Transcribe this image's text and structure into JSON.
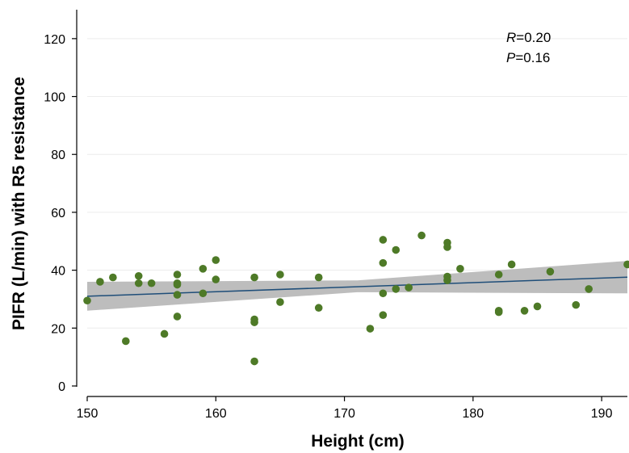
{
  "chart_data": {
    "type": "scatter",
    "xlabel": "Height (cm)",
    "ylabel": "PIFR (L/min) with R5 resistance",
    "xlim": [
      150,
      192
    ],
    "ylim": [
      0,
      130
    ],
    "xticks": [
      150,
      160,
      170,
      180,
      190
    ],
    "yticks": [
      0,
      20,
      40,
      60,
      80,
      100,
      120
    ],
    "grid": "horizontal",
    "annotation": {
      "r_label": "R",
      "r_value": "=0.20",
      "p_label": "P",
      "p_value": "=0.16"
    },
    "colors": {
      "points": "#4e7a27",
      "fit_line": "#1f4e79",
      "ci_band": "#bdbdbd",
      "grid": "#ececec"
    },
    "points": [
      [
        150,
        29.5
      ],
      [
        151,
        36
      ],
      [
        152,
        37.5
      ],
      [
        153,
        15.5
      ],
      [
        154,
        38
      ],
      [
        154,
        35.5
      ],
      [
        155,
        35.5
      ],
      [
        156,
        18
      ],
      [
        157,
        38.5
      ],
      [
        157,
        35.5
      ],
      [
        157,
        35
      ],
      [
        157,
        31.5
      ],
      [
        157,
        24
      ],
      [
        159,
        40.5
      ],
      [
        159,
        32
      ],
      [
        160,
        43.5
      ],
      [
        160,
        36.8
      ],
      [
        163,
        37.5
      ],
      [
        163,
        23
      ],
      [
        163,
        22
      ],
      [
        163,
        8.5
      ],
      [
        165,
        38.5
      ],
      [
        165,
        29
      ],
      [
        168,
        37.5
      ],
      [
        168,
        27
      ],
      [
        172,
        19.8
      ],
      [
        173,
        50.5
      ],
      [
        173,
        42.5
      ],
      [
        173,
        32
      ],
      [
        173,
        24.5
      ],
      [
        174,
        47
      ],
      [
        174,
        33.5
      ],
      [
        175,
        34
      ],
      [
        176,
        52
      ],
      [
        178,
        49.5
      ],
      [
        178,
        48
      ],
      [
        178,
        37.8
      ],
      [
        178,
        36.5
      ],
      [
        179,
        40.5
      ],
      [
        182,
        38.5
      ],
      [
        182,
        26
      ],
      [
        182,
        25.5
      ],
      [
        183,
        42
      ],
      [
        184,
        26
      ],
      [
        185,
        27.5
      ],
      [
        186,
        39.5
      ],
      [
        188,
        28
      ],
      [
        189,
        33.5
      ],
      [
        192,
        42
      ]
    ],
    "fit": {
      "x": [
        150,
        192
      ],
      "y": [
        31,
        37.6
      ]
    },
    "ci_band": {
      "x": [
        150,
        171,
        192
      ],
      "lower": [
        26,
        32.4,
        32
      ],
      "upper": [
        36,
        36.5,
        43.2
      ]
    }
  }
}
